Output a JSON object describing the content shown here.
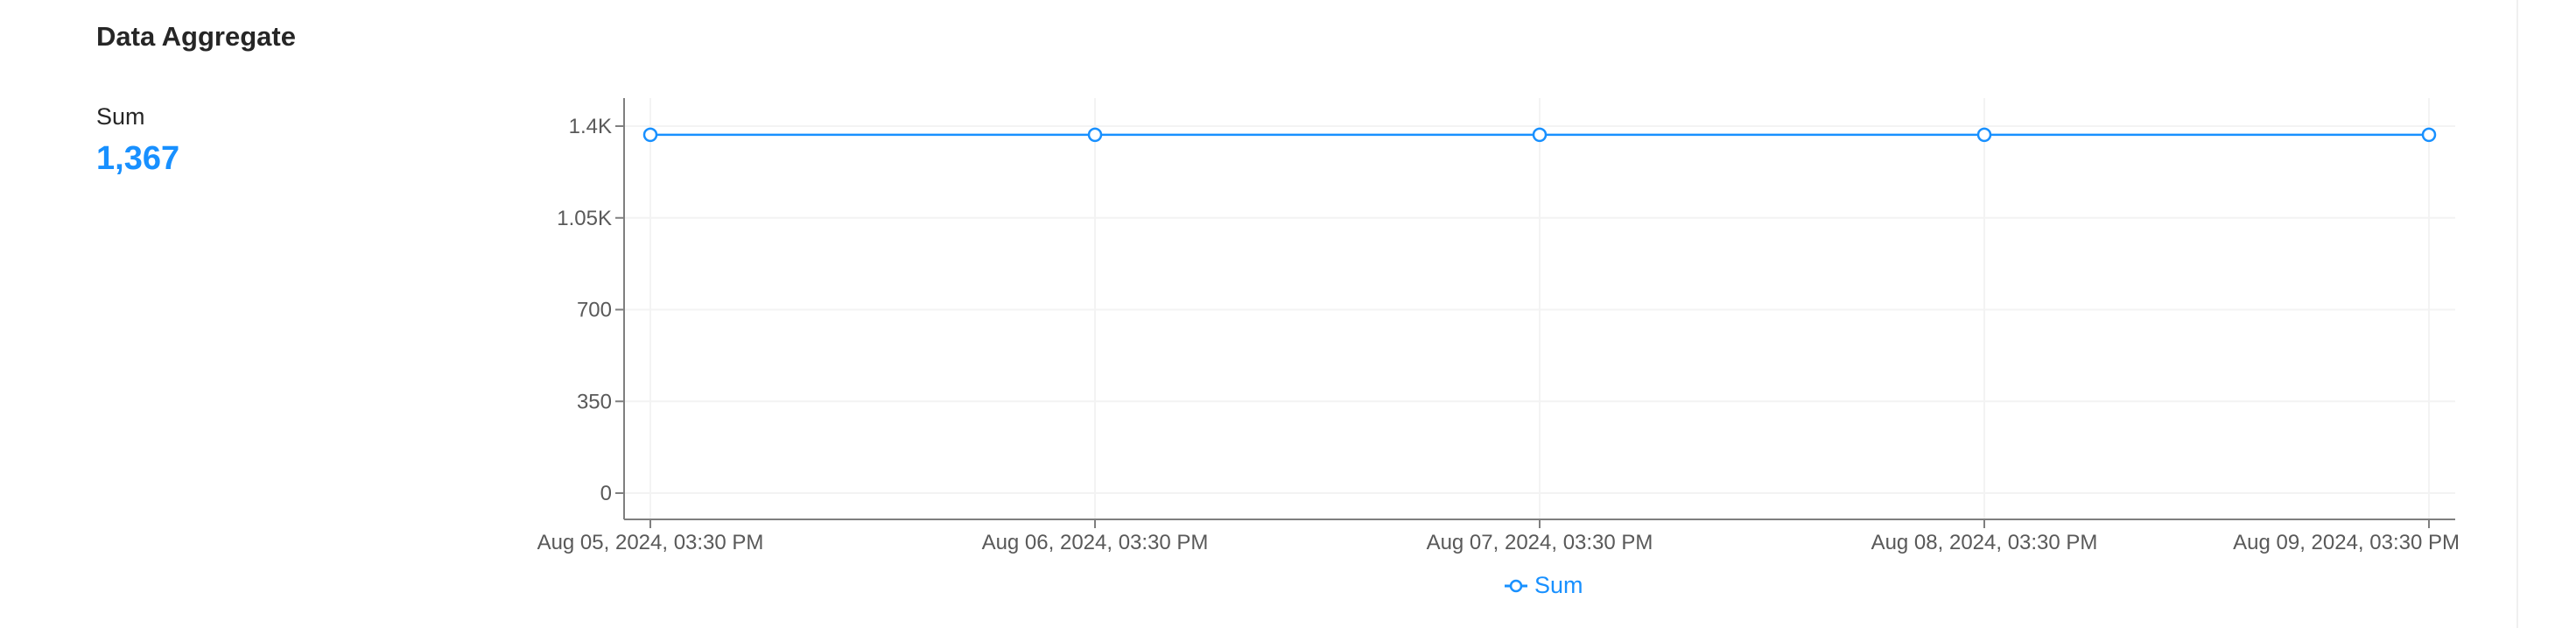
{
  "panel": {
    "title": "Data Aggregate"
  },
  "stat": {
    "label": "Sum",
    "value": "1,367"
  },
  "colors": {
    "series": "#1890ff",
    "axis": "#7f7f7f",
    "grid": "#f3f3f3",
    "tick_text": "#595959"
  },
  "chart_data": {
    "type": "line",
    "x": [
      "Aug 05, 2024, 03:30 PM",
      "Aug 06, 2024, 03:30 PM",
      "Aug 07, 2024, 03:30 PM",
      "Aug 08, 2024, 03:30 PM",
      "Aug 09, 2024, 03:30 PM"
    ],
    "series": [
      {
        "name": "Sum",
        "values": [
          1367,
          1367,
          1367,
          1367,
          1367
        ]
      }
    ],
    "ylim": [
      0,
      1400
    ],
    "yticks": [
      {
        "value": 0,
        "label": "0"
      },
      {
        "value": 350,
        "label": "350"
      },
      {
        "value": 700,
        "label": "700"
      },
      {
        "value": 1050,
        "label": "1.05K"
      },
      {
        "value": 1400,
        "label": "1.4K"
      }
    ],
    "grid": true,
    "legend_position": "bottom-center",
    "xlabel": "",
    "ylabel": ""
  }
}
